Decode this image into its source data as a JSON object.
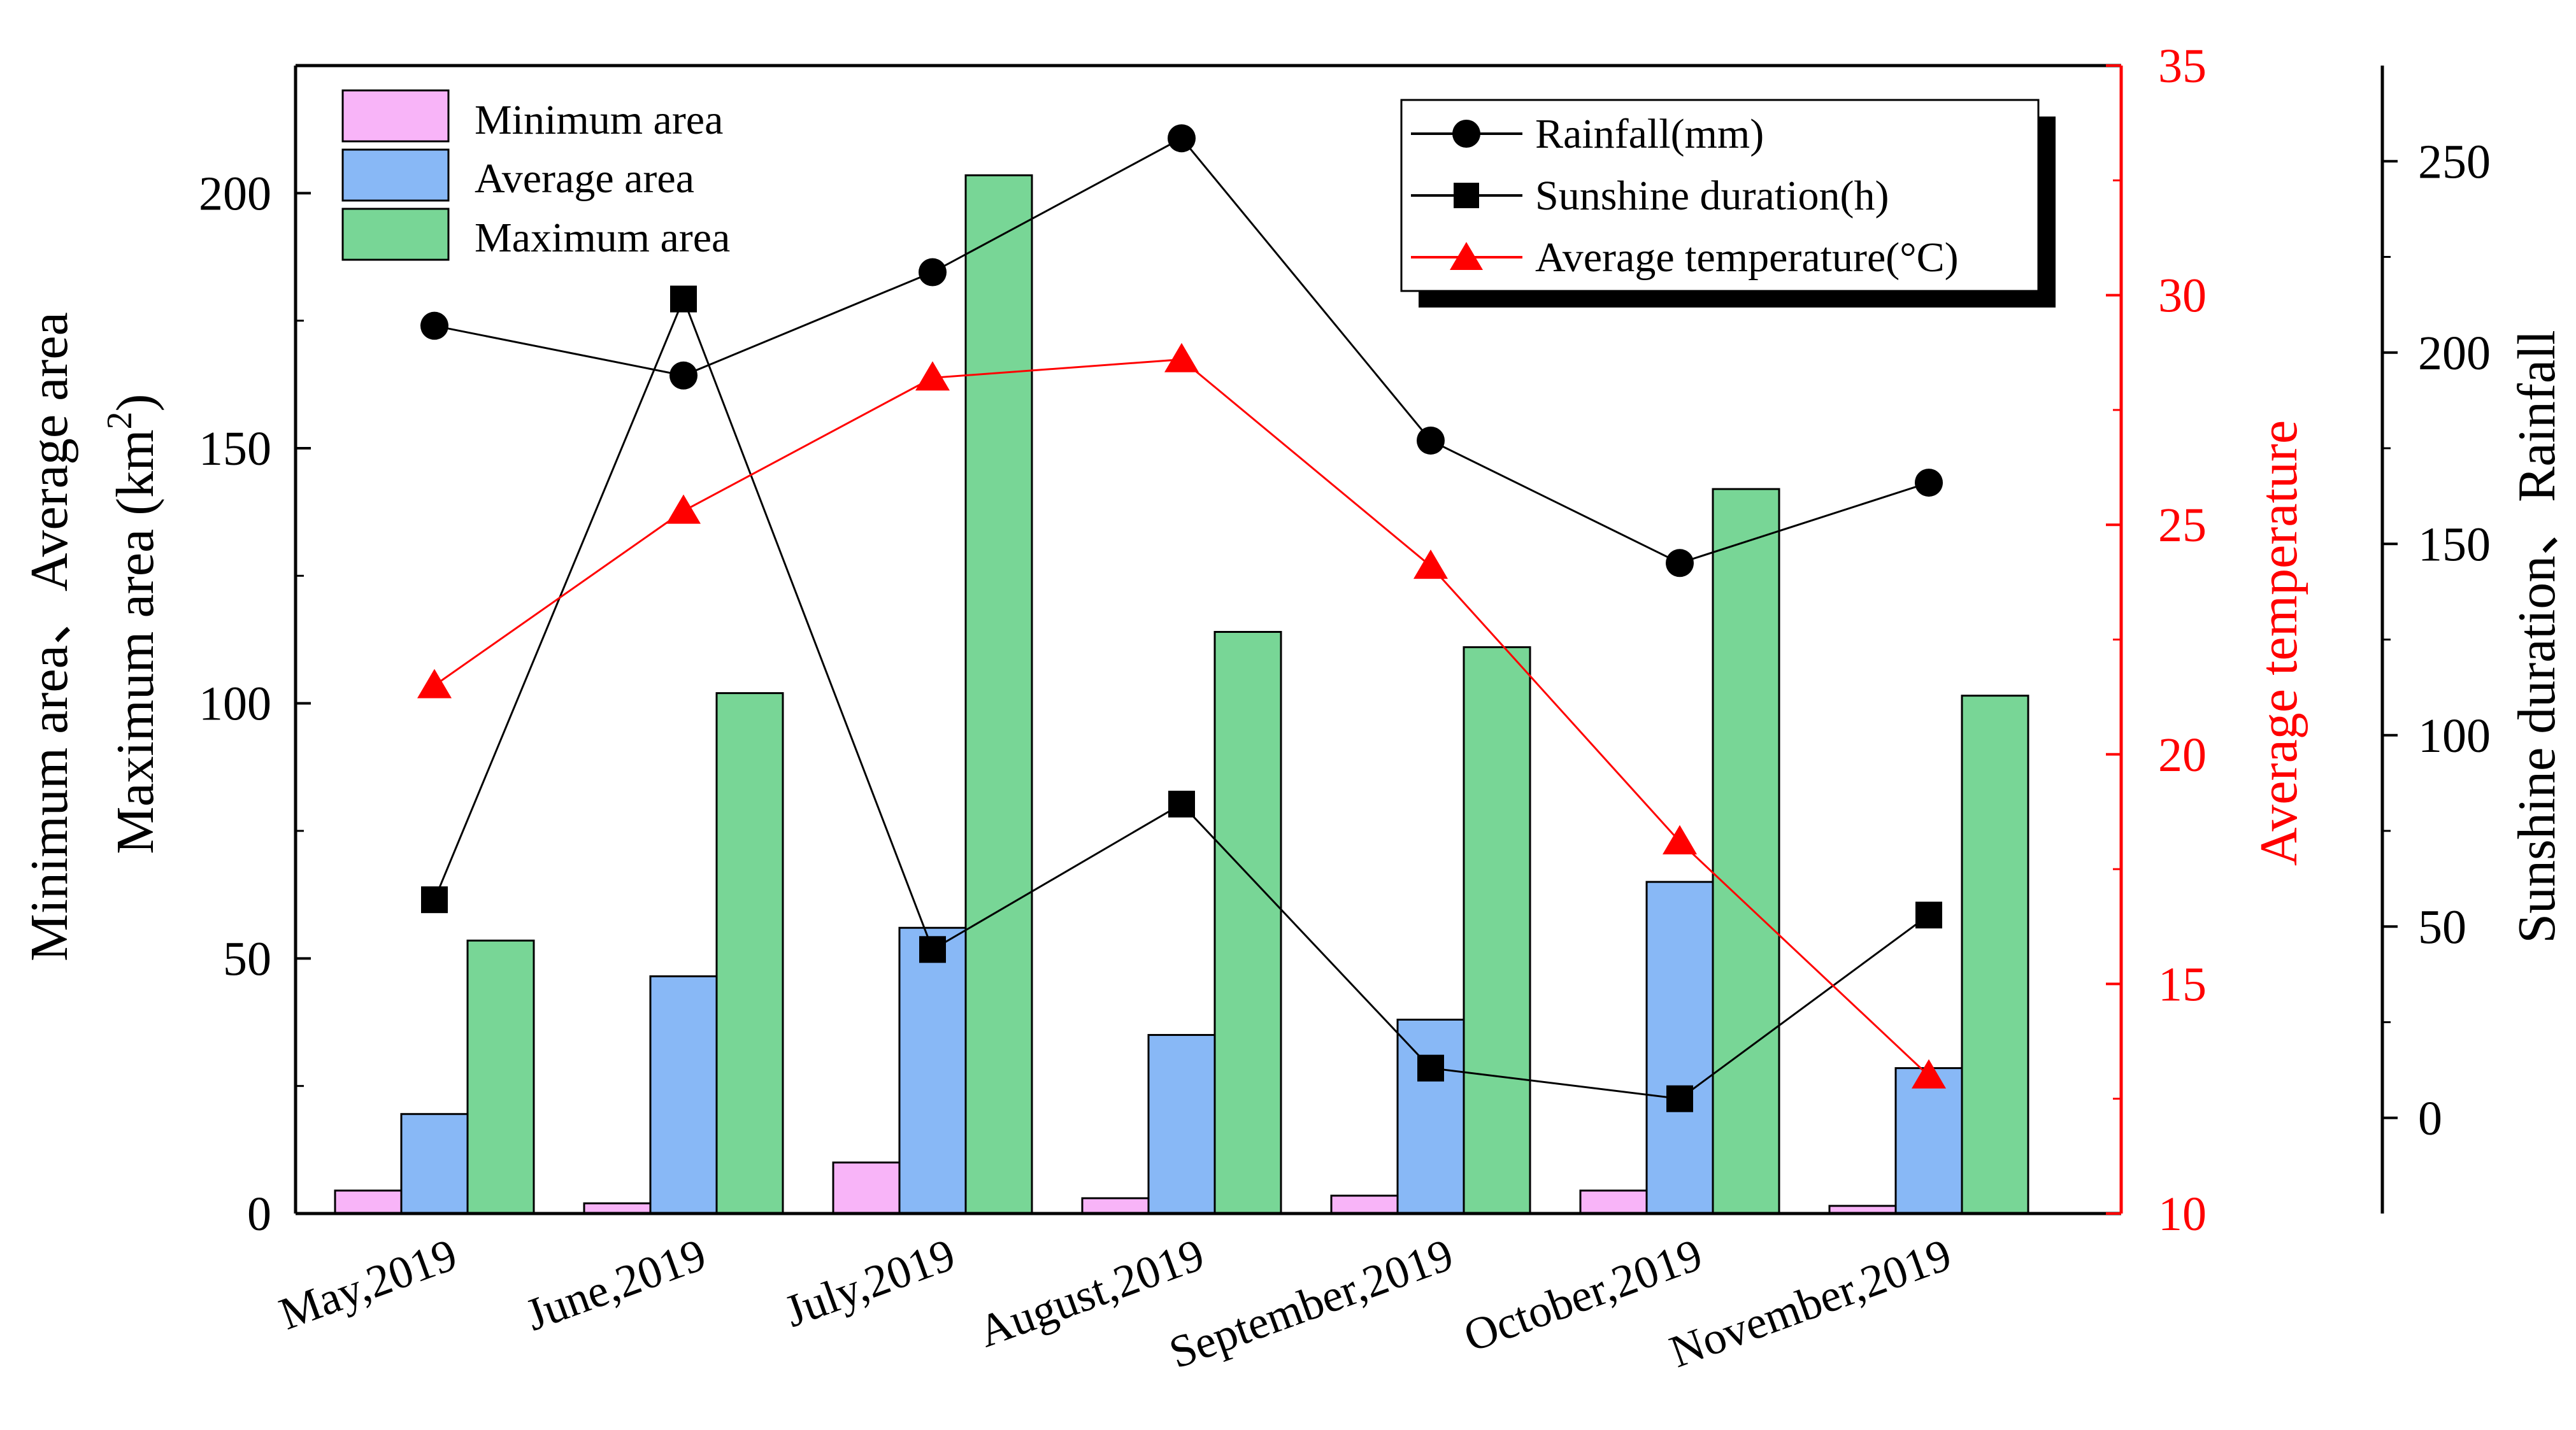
{
  "chart_data": {
    "type": "bar",
    "title": "",
    "categories": [
      "May,2019",
      "June,2019",
      "July,2019",
      "August,2019",
      "September,2019",
      "October,2019",
      "November,2019"
    ],
    "bar_series": [
      {
        "name": "Minimum area",
        "color": "#f8b4f8",
        "values": [
          4.5,
          2,
          10,
          3,
          3.5,
          4.5,
          1.5
        ]
      },
      {
        "name": "Average area",
        "color": "#88b8f6",
        "values": [
          19.5,
          46.5,
          56,
          35,
          38,
          65,
          28.5
        ]
      },
      {
        "name": "Maximum area",
        "color": "#78d696",
        "values": [
          53.5,
          102,
          203.5,
          114,
          111,
          142,
          101.5
        ]
      }
    ],
    "line_series": [
      {
        "name": "Rainfall(mm)",
        "color": "#000000",
        "marker": "circle",
        "axis": "right_outer",
        "values": [
          207,
          194,
          221,
          256,
          177,
          145,
          166
        ]
      },
      {
        "name": "Sunshine duration(h)",
        "color": "#000000",
        "marker": "square",
        "axis": "right_outer",
        "values": [
          57,
          214,
          44,
          82,
          13,
          5,
          53
        ]
      },
      {
        "name": "Average temperature(°C)",
        "color": "#ff0000",
        "marker": "triangle",
        "axis": "right_inner",
        "values": [
          21.5,
          25.3,
          28.2,
          28.6,
          24.1,
          18.1,
          13
        ]
      }
    ],
    "left_axis": {
      "label_line1": "Minimum area、Average area",
      "label_line2_main": "Maximum area (km",
      "label_line2_sup": "2",
      "label_line2_end": ")",
      "ylim": [
        0,
        225
      ],
      "ticks": [
        0,
        50,
        100,
        150,
        200
      ]
    },
    "right_inner_axis": {
      "label": "Average temperature",
      "color": "#ff0000",
      "ylim": [
        10,
        35
      ],
      "ticks": [
        10,
        15,
        20,
        25,
        30,
        35
      ]
    },
    "right_outer_axis": {
      "label": "Sunshine duration、Rainfall",
      "ylim": [
        -25,
        275
      ],
      "ticks": [
        0,
        50,
        100,
        150,
        200,
        250
      ]
    },
    "legend_bars_position": "top-left",
    "legend_lines_position": "top-right",
    "grid": false
  }
}
